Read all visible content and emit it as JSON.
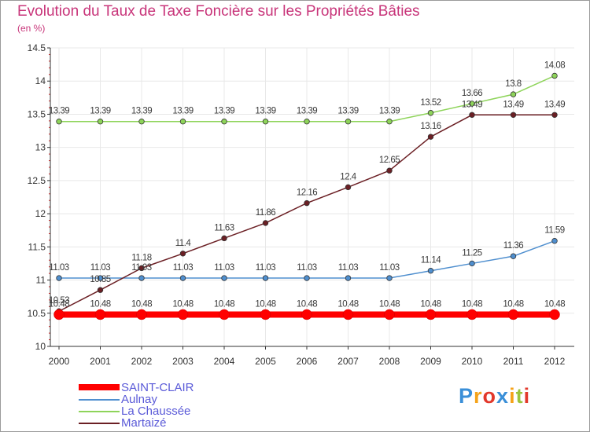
{
  "title": "Evolution du Taux de Taxe Foncière sur les Propriétés Bâties",
  "unit_label": "(en %)",
  "brand": {
    "letters": [
      "P",
      "r",
      "o",
      "x",
      "i",
      "t",
      "i"
    ],
    "colors": [
      "#3a8fd8",
      "#f5a31a",
      "#e2382b",
      "#3a8fd8",
      "#f5a31a",
      "#9ac43c",
      "#e2382b"
    ]
  },
  "colors": {
    "title": "#c8357a",
    "legend_text": "#5a5ad8",
    "axis": "#333333",
    "grid": "#e8e8e8"
  },
  "chart_data": {
    "type": "line",
    "title": "Evolution du Taux de Taxe Foncière sur les Propriétés Bâties",
    "ylabel": "(en %)",
    "xlabel": "",
    "x": [
      "2000",
      "2001",
      "2002",
      "2003",
      "2004",
      "2005",
      "2006",
      "2007",
      "2008",
      "2009",
      "2010",
      "2011",
      "2012"
    ],
    "ylim": [
      10,
      14.5
    ],
    "yticks": [
      "10",
      "10.5",
      "11",
      "11.5",
      "12",
      "12.5",
      "13",
      "13.5",
      "14",
      "14.5"
    ],
    "legend_position": "bottom-left",
    "series": [
      {
        "name": "SAINT-CLAIR",
        "color": "#ff0000",
        "values": [
          10.48,
          10.48,
          10.48,
          10.48,
          10.48,
          10.48,
          10.48,
          10.48,
          10.48,
          10.48,
          10.48,
          10.48,
          10.48
        ],
        "labels": [
          "10.48",
          "10.48",
          "10.48",
          "10.48",
          "10.48",
          "10.48",
          "10.48",
          "10.48",
          "10.48",
          "10.48",
          "10.48",
          "10.48",
          "10.48"
        ]
      },
      {
        "name": "Aulnay",
        "color": "#4f8fcf",
        "values": [
          11.03,
          11.03,
          11.03,
          11.03,
          11.03,
          11.03,
          11.03,
          11.03,
          11.03,
          11.14,
          11.25,
          11.36,
          11.59
        ],
        "labels": [
          "11.03",
          "11.03",
          "11.03",
          "11.03",
          "11.03",
          "11.03",
          "11.03",
          "11.03",
          "11.03",
          "11.14",
          "11.25",
          "11.36",
          "11.59"
        ]
      },
      {
        "name": "La Chaussée",
        "color": "#8ed45a",
        "values": [
          13.39,
          13.39,
          13.39,
          13.39,
          13.39,
          13.39,
          13.39,
          13.39,
          13.39,
          13.52,
          13.66,
          13.8,
          14.08
        ],
        "labels": [
          "13.39",
          "13.39",
          "13.39",
          "13.39",
          "13.39",
          "13.39",
          "13.39",
          "13.39",
          "13.39",
          "13.52",
          "13.66",
          "13.8",
          "14.08"
        ]
      },
      {
        "name": "Martaizé",
        "color": "#6b1f24",
        "values": [
          10.53,
          10.85,
          11.18,
          11.4,
          11.63,
          11.86,
          12.16,
          12.4,
          12.65,
          13.16,
          13.49,
          13.49,
          13.49
        ],
        "labels": [
          "10.53",
          "10.85",
          "11.18",
          "11.4",
          "11.63",
          "11.86",
          "12.16",
          "12.4",
          "12.65",
          "13.16",
          "13.49",
          "13.49",
          "13.49"
        ]
      }
    ]
  }
}
